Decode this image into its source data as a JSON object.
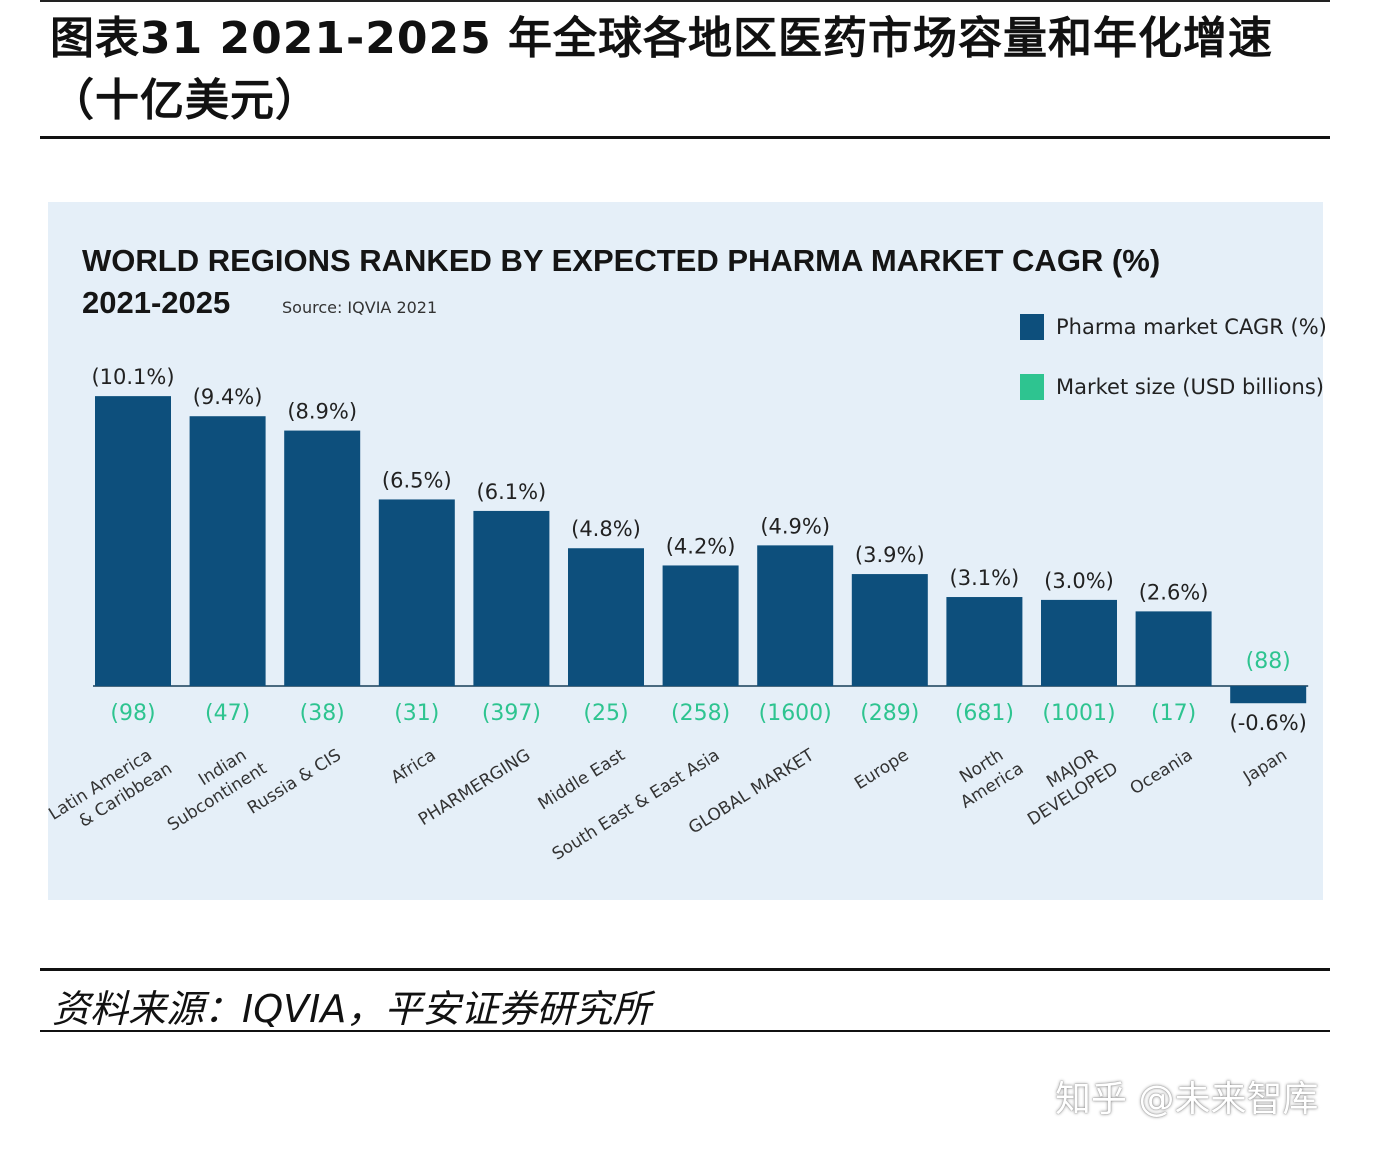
{
  "figure_title": "图表31    2021-2025 年全球各地区医药市场容量和年化增速（十亿美元）",
  "source_note": "资料来源：IQVIA，平安证券研究所",
  "watermark": "知乎 @未来智库",
  "chart_data": {
    "type": "bar",
    "title": "WORLD REGIONS RANKED BY EXPECTED PHARMA MARKET CAGR (%)",
    "subtitle": "2021-2025",
    "source": "Source:  IQVIA 2021",
    "categories": [
      [
        "Latin America",
        "& Caribbean"
      ],
      [
        "Indian",
        "Subcontinent"
      ],
      [
        "Russia & CIS"
      ],
      [
        "Africa"
      ],
      [
        "PHARMERGING"
      ],
      [
        "Middle East"
      ],
      [
        "South East & East Asia"
      ],
      [
        "GLOBAL MARKET"
      ],
      [
        "Europe"
      ],
      [
        "North",
        "America"
      ],
      [
        "MAJOR",
        "DEVELOPED"
      ],
      [
        "Oceania"
      ],
      [
        "Japan"
      ]
    ],
    "series": [
      {
        "name": "Pharma market CAGR (%)",
        "color": "#0d4f7c",
        "values": [
          10.1,
          9.4,
          8.9,
          6.5,
          6.1,
          4.8,
          4.2,
          4.9,
          3.9,
          3.1,
          3.0,
          2.6,
          -0.6
        ],
        "labels": [
          "(10.1%)",
          "(9.4%)",
          "(8.9%)",
          "(6.5%)",
          "(6.1%)",
          "(4.8%)",
          "(4.2%)",
          "(4.9%)",
          "(3.9%)",
          "(3.1%)",
          "(3.0%)",
          "(2.6%)",
          "(-0.6%)"
        ]
      },
      {
        "name": "Market size (USD billions)",
        "color": "#2ec490",
        "values": [
          98,
          47,
          38,
          31,
          397,
          25,
          258,
          1600,
          289,
          681,
          1001,
          17,
          88
        ],
        "labels": [
          "(98)",
          "(47)",
          "(38)",
          "(31)",
          "(397)",
          "(25)",
          "(258)",
          "(1600)",
          "(289)",
          "(681)",
          "(1001)",
          "(17)",
          "(88)"
        ]
      }
    ],
    "legend_position": "top-right",
    "grid": false,
    "background": "#e5eff8"
  }
}
